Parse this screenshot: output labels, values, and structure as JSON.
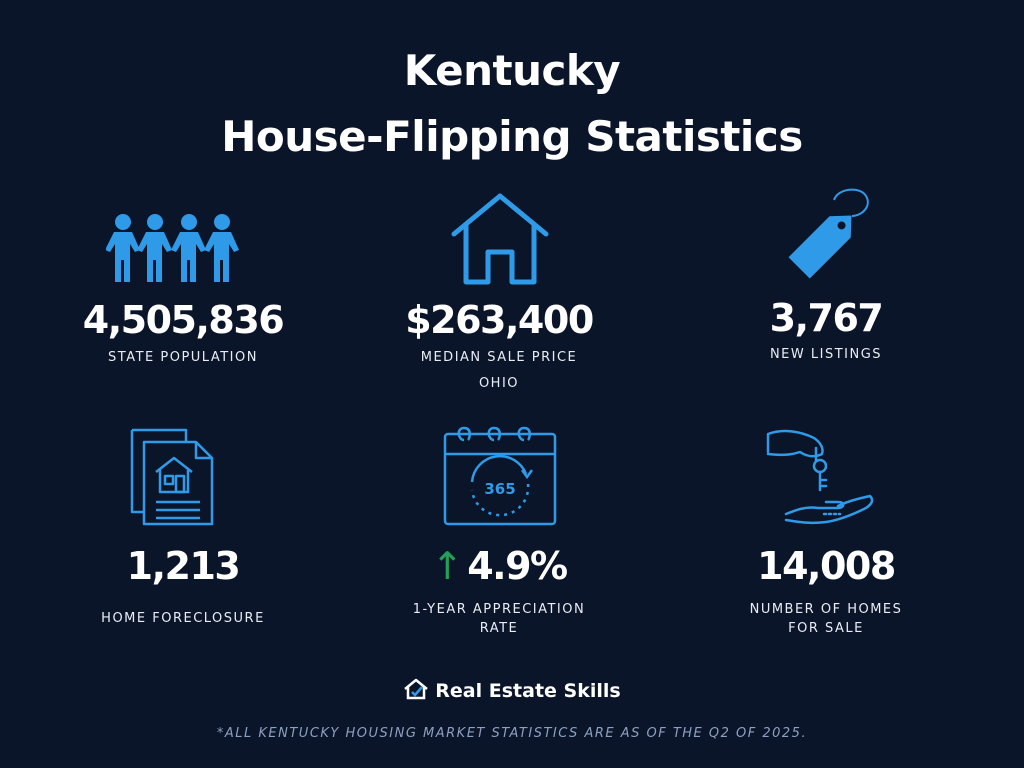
{
  "title_line1": "Kentucky",
  "title_line2": "House-Flipping Statistics",
  "colors": {
    "background": "#0b1529",
    "icon_blue": "#2f9be8",
    "arrow_green": "#22a05a"
  },
  "stats": [
    {
      "value": "4,505,836",
      "label": "STATE POPULATION",
      "icon": "people-icon"
    },
    {
      "value": "$263,400",
      "label": "MEDIAN SALE PRICE",
      "sublabel": "OHIO",
      "icon": "house-icon"
    },
    {
      "value": "3,767",
      "label": "NEW LISTINGS",
      "icon": "price-tag-icon"
    },
    {
      "value": "1,213",
      "label": "HOME FORECLOSURE",
      "icon": "documents-house-icon"
    },
    {
      "value": "4.9%",
      "arrow": "↑",
      "label_line1": "1-YEAR APPRECIATION",
      "label_line2": "RATE",
      "icon": "calendar-365-icon"
    },
    {
      "value": "14,008",
      "label_line1": "NUMBER OF HOMES",
      "label_line2": "FOR SALE",
      "icon": "hand-keys-icon"
    }
  ],
  "logo_text": "Real Estate Skills",
  "footnote": "*ALL KENTUCKY HOUSING MARKET STATISTICS ARE AS OF THE Q2 OF 2025."
}
